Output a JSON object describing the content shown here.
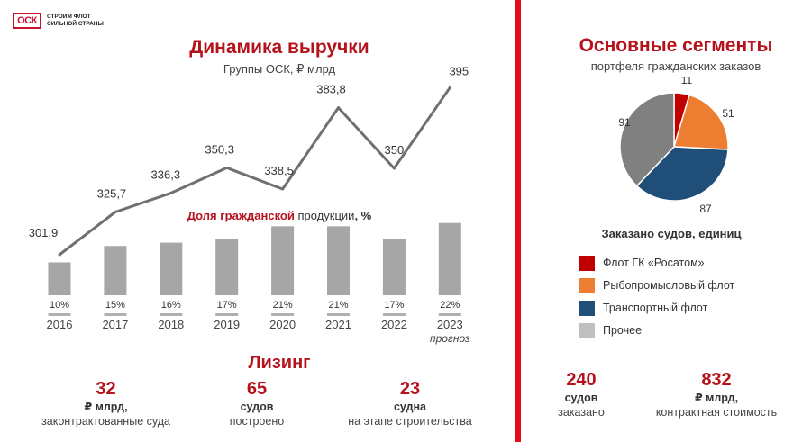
{
  "logo": {
    "mark": "ОСК",
    "line1": "СТРОИМ ФЛОТ",
    "line2": "СИЛЬНОЙ СТРАНЫ"
  },
  "revenue": {
    "title": "Динамика выручки",
    "subtitle": "Группы ОСК, ₽ млрд"
  },
  "share": {
    "title_red": "Доля гражданской",
    "title_rest": " продукции",
    "title_unit": ", %"
  },
  "leasing": {
    "title": "Лизинг",
    "stats": [
      {
        "num": "32",
        "unit": "₽ млрд,",
        "desc": "законтрактованные суда"
      },
      {
        "num": "65",
        "unit": "судов",
        "desc": "построено"
      },
      {
        "num": "23",
        "unit": "судна",
        "desc": "на этапе строительства"
      }
    ]
  },
  "segments": {
    "title": "Основные сегменты",
    "subtitle": "портфеля гражданских заказов",
    "caption": "Заказано судов, единиц",
    "stats": [
      {
        "num": "240",
        "unit": "судов",
        "desc": "заказано"
      },
      {
        "num": "832",
        "unit": "₽ млрд,",
        "desc": "контрактная стоимость"
      }
    ]
  },
  "chart_data": [
    {
      "type": "line",
      "title": "Динамика выручки",
      "subtitle": "Группы ОСК, ₽ млрд",
      "x": [
        "2016",
        "2017",
        "2018",
        "2019",
        "2020",
        "2021",
        "2022",
        "2023"
      ],
      "x_note": {
        "2023": "прогноз"
      },
      "values": [
        301.9,
        325.7,
        336.3,
        350.3,
        338.5,
        383.8,
        350,
        395
      ],
      "labels": [
        "301,9",
        "325,7",
        "336,3",
        "350,3",
        "338,5",
        "383,8",
        "350",
        "395"
      ],
      "color": "#707070"
    },
    {
      "type": "bar",
      "title": "Доля гражданской продукции, %",
      "categories": [
        "2016",
        "2017",
        "2018",
        "2019",
        "2020",
        "2021",
        "2022",
        "2023"
      ],
      "values": [
        10,
        15,
        16,
        17,
        21,
        21,
        17,
        22
      ],
      "labels": [
        "10%",
        "15%",
        "16%",
        "17%",
        "21%",
        "21%",
        "17%",
        "22%"
      ],
      "color": "#a6a6a6"
    },
    {
      "type": "pie",
      "title": "Основные сегменты",
      "subtitle": "портфеля гражданских заказов",
      "caption": "Заказано судов, единиц",
      "slices": [
        {
          "name": "Флот ГК «Росатом»",
          "value": 11,
          "color": "#c00000"
        },
        {
          "name": "Рыбопромысловый флот",
          "value": 51,
          "color": "#ed7d31"
        },
        {
          "name": "Транспортный флот",
          "value": 87,
          "color": "#1f4e79"
        },
        {
          "name": "Прочее",
          "value": 91,
          "color": "#bfbfbf"
        }
      ],
      "slice_display_color_other": "#808080",
      "legend_position": "bottom"
    }
  ]
}
